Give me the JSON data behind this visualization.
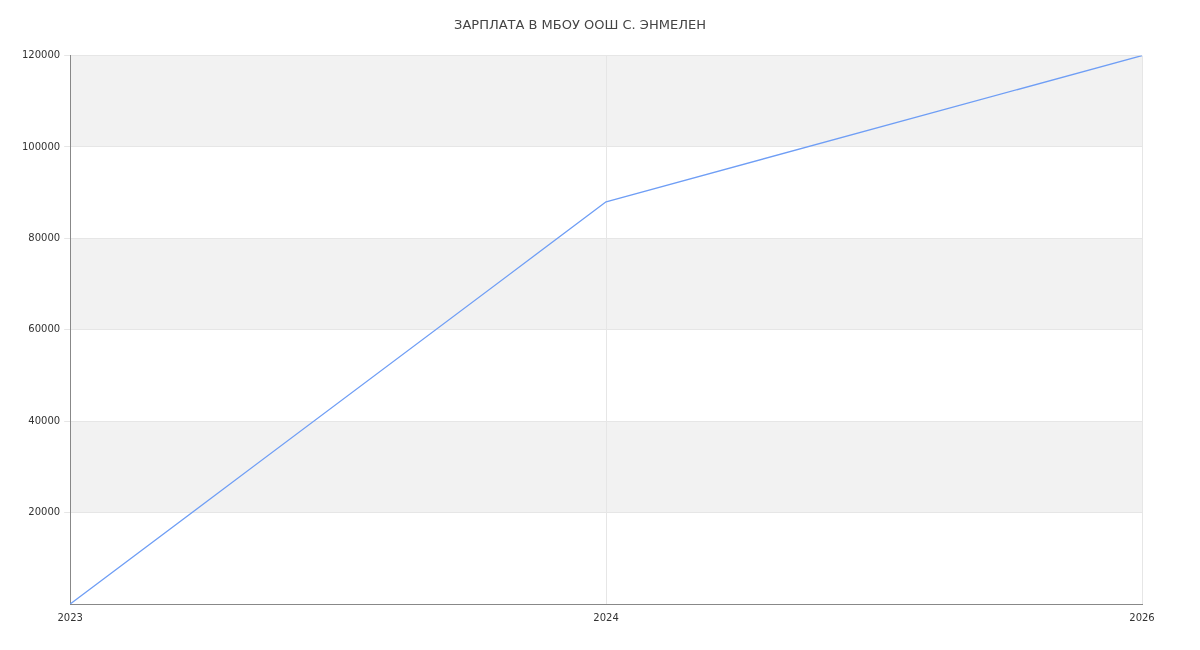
{
  "chart_data": {
    "type": "line",
    "title": "ЗАРПЛАТА В МБОУ ООШ С. ЭНМЕЛЕН",
    "categories": [
      "2023",
      "2024",
      "2026"
    ],
    "series": [
      {
        "color": "#6f9ef5",
        "values": [
          0,
          88000,
          120000
        ]
      }
    ],
    "ylim": [
      0,
      120000
    ],
    "yticks": [
      20000,
      40000,
      60000,
      80000,
      100000,
      120000
    ],
    "bands": [
      {
        "axis": "y",
        "from": 20000,
        "to": 40000,
        "color": "#f2f2f2"
      },
      {
        "axis": "y",
        "from": 60000,
        "to": 80000,
        "color": "#f2f2f2"
      },
      {
        "axis": "y",
        "from": 100000,
        "to": 120000,
        "color": "#f2f2f2"
      }
    ],
    "grid": true,
    "legend": false,
    "marker": "none",
    "line_style": "solid"
  }
}
